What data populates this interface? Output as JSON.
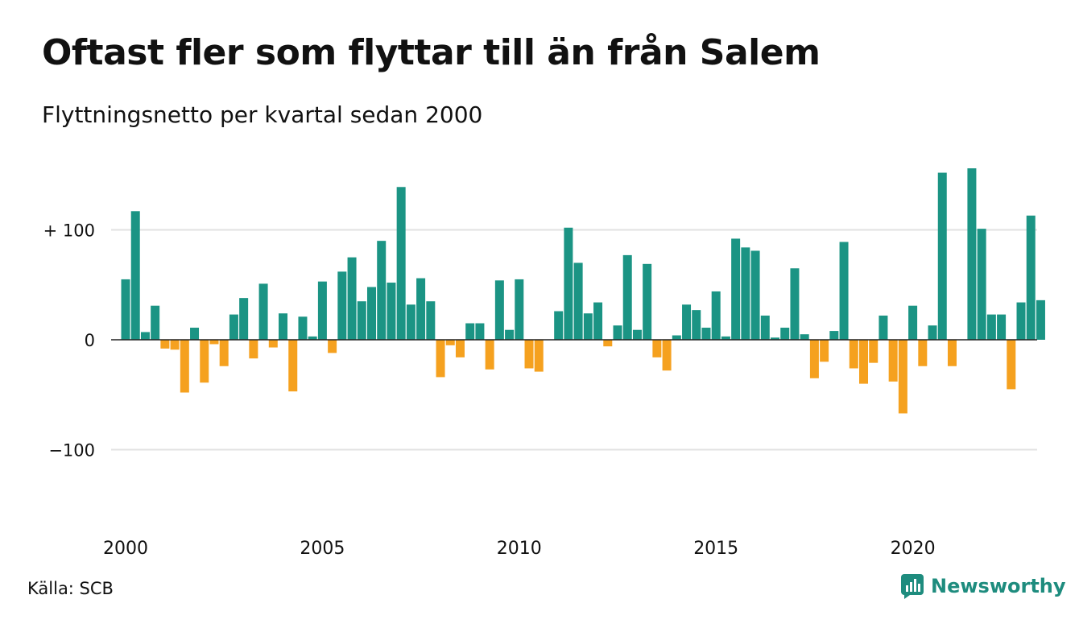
{
  "title": "Oftast fler som flyttar till än från Salem",
  "subtitle": "Flyttningsnetto per kvartal sedan 2000",
  "source": "Källa: SCB",
  "brand": {
    "name": "Newsworthy",
    "icon": "newsworthy-logo-icon"
  },
  "colors": {
    "positive": "#1b9484",
    "negative": "#f5a11f",
    "grid": "#e2e2e2",
    "axis": "#222222"
  },
  "chart_data": {
    "type": "bar",
    "x_start_year": 2000,
    "x_start_quarter": 1,
    "xticks": [
      {
        "year": 2000,
        "label": "2000"
      },
      {
        "year": 2005,
        "label": "2005"
      },
      {
        "year": 2010,
        "label": "2010"
      },
      {
        "year": 2015,
        "label": "2015"
      },
      {
        "year": 2020,
        "label": "2020"
      }
    ],
    "yticks": [
      {
        "value": 100,
        "label": "+ 100"
      },
      {
        "value": 0,
        "label": "0"
      },
      {
        "value": -100,
        "label": "−100"
      }
    ],
    "ylim": [
      -165,
      160
    ],
    "grid": true,
    "values": [
      55,
      117,
      7,
      31,
      -8,
      -9,
      -48,
      11,
      -39,
      -4,
      -24,
      23,
      38,
      -17,
      51,
      -7,
      24,
      -47,
      21,
      3,
      53,
      -12,
      62,
      75,
      35,
      48,
      90,
      52,
      139,
      32,
      56,
      35,
      -34,
      -5,
      -16,
      15,
      15,
      -27,
      54,
      9,
      55,
      -26,
      -29,
      0,
      26,
      102,
      70,
      24,
      34,
      -6,
      13,
      77,
      9,
      69,
      -16,
      -28,
      4,
      32,
      27,
      11,
      44,
      3,
      92,
      84,
      81,
      22,
      2,
      11,
      65,
      5,
      -35,
      -20,
      8,
      89,
      -26,
      -40,
      -21,
      22,
      -38,
      -67,
      31,
      -24,
      13,
      152,
      -24,
      0,
      156,
      101,
      23,
      23,
      -45,
      34,
      113,
      36
    ]
  }
}
